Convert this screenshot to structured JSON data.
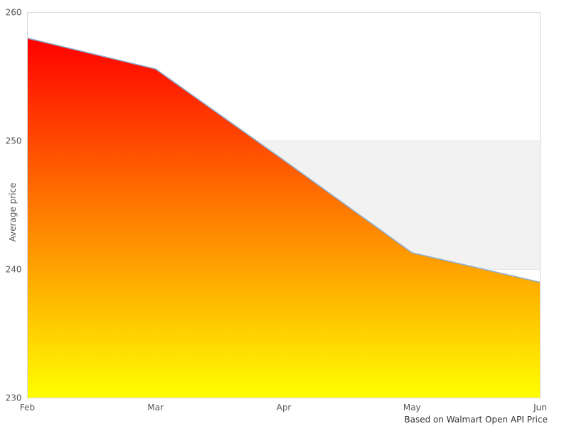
{
  "chart": {
    "ylabel": "Average price",
    "caption": "Based on Walmart Open API Price"
  },
  "chart_data": {
    "type": "area",
    "categories": [
      "Feb",
      "Mar",
      "Apr",
      "May",
      "Jun"
    ],
    "series": [
      {
        "name": "Average price",
        "values": [
          258,
          255.6,
          248.5,
          241.3,
          239
        ]
      }
    ],
    "title": "",
    "xlabel": "",
    "ylabel": "Average price",
    "ylim": [
      230,
      260
    ],
    "yticks": [
      230,
      240,
      250,
      260
    ],
    "grid": false,
    "legend": "none",
    "plot_band": {
      "from": 240,
      "to": 250
    },
    "caption": "Based on Walmart Open API Price",
    "colors": {
      "area_gradient_top": "#ff0000",
      "area_gradient_bottom": "#ffff00",
      "line": "#8fafd0",
      "band_fill": "#f2f2f2",
      "band_edge": "#e6e6e6",
      "plot_border": "#d9d9d9",
      "tick_text": "#555555",
      "axis_title_text": "#555555",
      "caption_text": "#333333"
    }
  }
}
